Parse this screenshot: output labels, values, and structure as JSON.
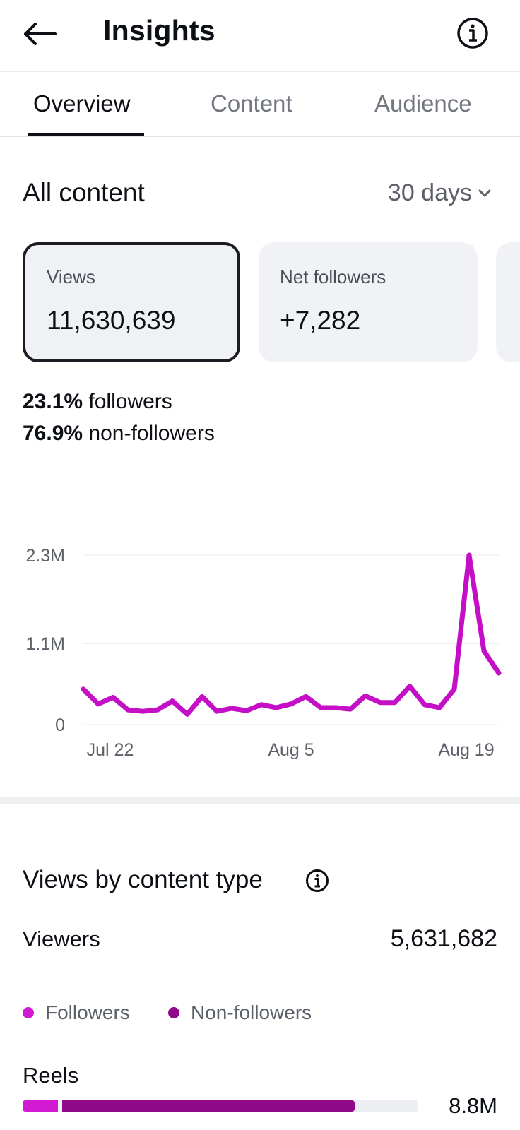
{
  "header": {
    "title": "Insights",
    "back_icon": "arrow-left-icon",
    "info_icon": "info-circle-icon"
  },
  "tabs": [
    {
      "label": "Overview",
      "active": true
    },
    {
      "label": "Content",
      "active": false
    },
    {
      "label": "Audience",
      "active": false
    }
  ],
  "summary": {
    "title": "All content",
    "range": "30 days"
  },
  "cards": [
    {
      "label": "Views",
      "value": "11,630,639",
      "selected": true
    },
    {
      "label": "Net followers",
      "value": "+7,282",
      "selected": false
    }
  ],
  "breakdown": {
    "followers_pct": "23.1%",
    "followers_text": " followers",
    "nonfollowers_pct": "76.9%",
    "nonfollowers_text": " non-followers"
  },
  "chart_data": {
    "type": "line",
    "x_ticks": [
      "Jul 22",
      "Aug 5",
      "Aug 19"
    ],
    "y_ticks": [
      "2.3M",
      "1.1M",
      "0"
    ],
    "ylim": [
      0,
      2.3
    ],
    "y_unit": "M",
    "color": "#c40fc6",
    "grid": true,
    "series": [
      {
        "values": [
          0.48,
          0.28,
          0.37,
          0.2,
          0.18,
          0.2,
          0.32,
          0.14,
          0.38,
          0.18,
          0.22,
          0.19,
          0.27,
          0.23,
          0.28,
          0.38,
          0.23,
          0.23,
          0.21,
          0.39,
          0.3,
          0.3,
          0.52,
          0.27,
          0.23,
          0.48,
          2.3,
          1.0,
          0.7
        ]
      }
    ]
  },
  "content_type": {
    "title": "Views by content type",
    "viewers_label": "Viewers",
    "viewers_value": "5,631,682",
    "legend": [
      {
        "label": "Followers",
        "color": "#d21ad3"
      },
      {
        "label": "Non-followers",
        "color": "#8e0a8a"
      }
    ],
    "rows": [
      {
        "label": "Reels",
        "value": "8.8M",
        "followers_fraction": 0.09,
        "nonfollowers_fraction": 0.74
      }
    ]
  }
}
